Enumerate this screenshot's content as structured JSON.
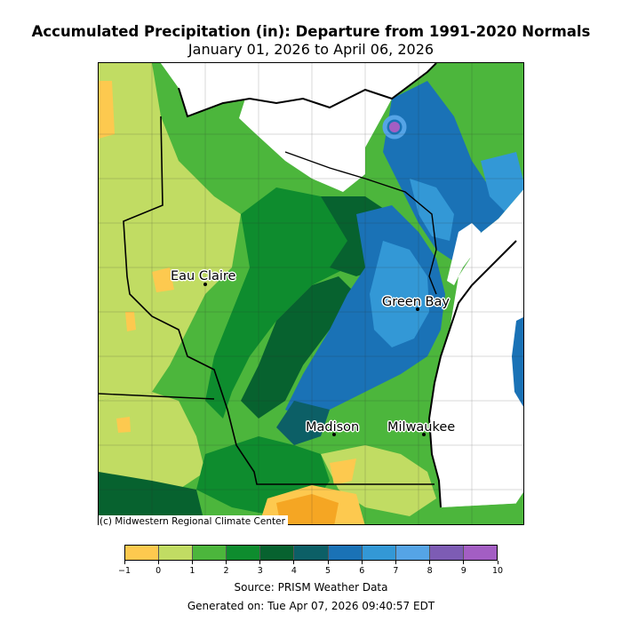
{
  "header": {
    "title": "Accumulated Precipitation (in): Departure from 1991-2020 Normals",
    "subtitle": "January 01, 2026 to April 06, 2026"
  },
  "map": {
    "copyright": "(c) Midwestern Regional Climate Center",
    "cities": [
      {
        "name": "Eau Claire"
      },
      {
        "name": "Green Bay"
      },
      {
        "name": "Madison"
      },
      {
        "name": "Milwaukee"
      }
    ]
  },
  "legend": {
    "colors": [
      "#fdc94f",
      "#c1dc63",
      "#4cb63c",
      "#0e8c2e",
      "#07622f",
      "#0c5f66",
      "#1a72b6",
      "#3398d6",
      "#55a4e6",
      "#7d5cb4",
      "#a35ec3"
    ],
    "tick_labels": [
      "−1",
      "0",
      "1",
      "2",
      "3",
      "4",
      "5",
      "6",
      "7",
      "8",
      "9",
      "10"
    ]
  },
  "footer": {
    "source": "Source: PRISM Weather Data",
    "generated": "Generated on: Tue Apr 07, 2026 09:40:57 EDT"
  }
}
